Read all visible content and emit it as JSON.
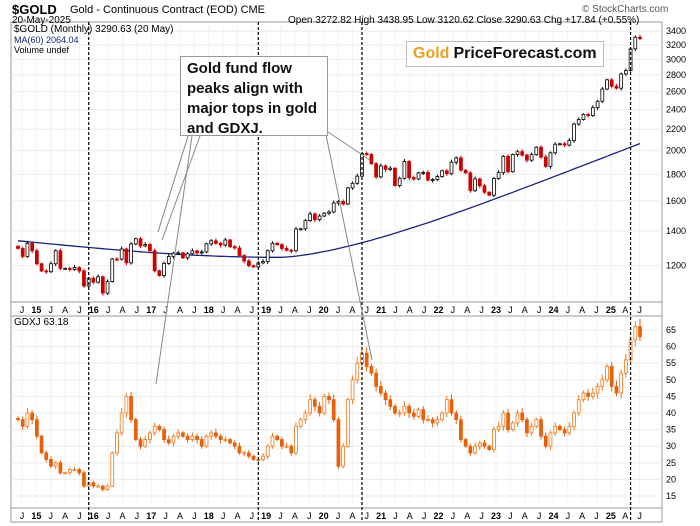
{
  "header": {
    "symbol": "$GOLD",
    "name": "Gold - Continuous Contract (EOD)",
    "exchange": "CME",
    "date": "20-May-2025",
    "ohlc": "Open 3272.82  High 3438.95  Low 3120.62  Close 3290.63  Chg +17.84 (+0.55%)",
    "watermark": "© StockCharts.com"
  },
  "legend": {
    "main": "$GOLD (Monthly) 3290.63 (20 May)",
    "ma": "MA(60) 2064.04",
    "volume": "Volume undef",
    "lower": "GDXJ 63.18"
  },
  "callout": {
    "text": "Gold fund flow peaks align with major tops in gold and GDXJ."
  },
  "logo": {
    "gold": "Gold",
    "rest": "PriceForecast.com"
  },
  "colors": {
    "up": "#000000",
    "down": "#cc0000",
    "ma": "#1a237e",
    "gdxj_up": "#f07818",
    "gdxj_down": "#e8600a"
  },
  "chart_data": [
    {
      "type": "candlestick",
      "title": "$GOLD (Monthly)",
      "ylim": [
        1030,
        3480
      ],
      "y_scale": "log",
      "yticks": [
        1200,
        1400,
        1600,
        1800,
        2000,
        2200,
        2400,
        2600,
        2800,
        3000,
        3200,
        3400
      ],
      "xlabels": [
        "J",
        "15",
        "J",
        "A",
        "J",
        "16",
        "J",
        "A",
        "J",
        "17",
        "J",
        "A",
        "J",
        "18",
        "J",
        "A",
        "J",
        "19",
        "J",
        "A",
        "J",
        "20",
        "J",
        "A",
        "J",
        "21",
        "J",
        "A",
        "J",
        "22",
        "J",
        "A",
        "J",
        "23",
        "J",
        "A",
        "J",
        "24",
        "J",
        "A",
        "J",
        "25",
        "A",
        "J"
      ],
      "x_start": "2014-04",
      "closes": [
        1295,
        1250,
        1325,
        1282,
        1210,
        1172,
        1168,
        1210,
        1282,
        1185,
        1185,
        1180,
        1190,
        1172,
        1096,
        1135,
        1115,
        1142,
        1062,
        1118,
        1236,
        1235,
        1292,
        1215,
        1321,
        1352,
        1310,
        1318,
        1282,
        1173,
        1148,
        1212,
        1250,
        1268,
        1270,
        1242,
        1265,
        1281,
        1270,
        1275,
        1322,
        1340,
        1325,
        1315,
        1345,
        1305,
        1298,
        1255,
        1225,
        1200,
        1193,
        1215,
        1222,
        1282,
        1325,
        1317,
        1295,
        1285,
        1282,
        1412,
        1413,
        1466,
        1510,
        1472,
        1496,
        1515,
        1523,
        1585,
        1596,
        1578,
        1695,
        1730,
        1786,
        1974,
        1968,
        1887,
        1780,
        1869,
        1840,
        1850,
        1713,
        1769,
        1906,
        1774,
        1763,
        1812,
        1815,
        1755,
        1760,
        1782,
        1829,
        1805,
        1900,
        1937,
        1834,
        1812,
        1674,
        1764,
        1711,
        1663,
        1641,
        1767,
        1814,
        1950,
        1822,
        1966,
        1991,
        1961,
        1917,
        1965,
        2031,
        1944,
        1865,
        1981,
        2058,
        2062,
        2050,
        2092,
        2251,
        2297,
        2349,
        2338,
        2421,
        2491,
        2630,
        2740,
        2663,
        2640,
        2812,
        2854,
        3144,
        3311,
        3290
      ],
      "ma_60": {
        "start": 1340,
        "min": 1245,
        "end": 2064
      }
    },
    {
      "type": "candlestick",
      "title": "GDXJ",
      "last": 63.18,
      "ylim": [
        12,
        68
      ],
      "yticks": [
        15,
        20,
        25,
        30,
        35,
        40,
        45,
        50,
        55,
        60,
        65
      ],
      "closes": [
        38,
        36,
        40,
        38,
        33,
        28,
        26,
        24,
        25,
        22,
        22,
        23,
        23,
        22,
        18,
        19,
        18,
        18,
        17,
        18,
        28,
        34,
        40,
        45,
        38,
        32,
        30,
        32,
        34,
        36,
        35,
        32,
        31,
        33,
        34,
        33,
        32,
        33,
        32,
        30,
        33,
        34,
        33,
        32,
        32,
        31,
        30,
        28,
        28,
        27,
        26,
        26,
        27,
        30,
        33,
        32,
        30,
        30,
        28,
        36,
        38,
        40,
        44,
        42,
        40,
        45,
        44,
        38,
        24,
        30,
        44,
        50,
        55,
        58,
        54,
        52,
        48,
        46,
        44,
        42,
        40,
        40,
        42,
        40,
        39,
        41,
        38,
        38,
        37,
        38,
        40,
        44,
        40,
        38,
        32,
        30,
        28,
        30,
        31,
        30,
        29,
        35,
        36,
        40,
        35,
        37,
        40,
        38,
        34,
        36,
        38,
        33,
        30,
        34,
        36,
        35,
        34,
        36,
        40,
        44,
        46,
        45,
        46,
        48,
        50,
        54,
        48,
        46,
        52,
        56,
        62,
        66,
        63
      ]
    }
  ]
}
